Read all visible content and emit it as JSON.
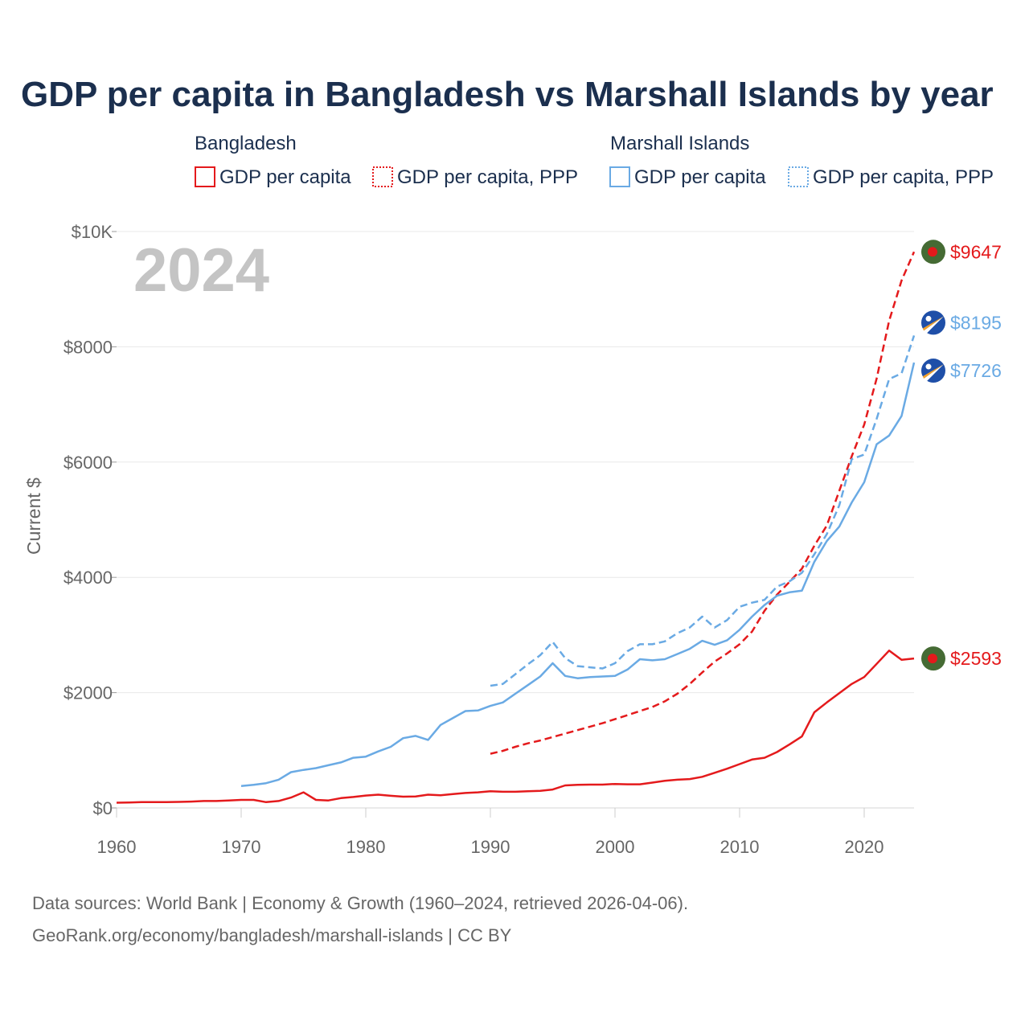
{
  "chart_data": {
    "type": "line",
    "title": "GDP per capita in Bangladesh vs Marshall Islands by year",
    "year_label": "2024",
    "ylabel": "Current $",
    "xlabel": "",
    "xlim": [
      1960,
      2024
    ],
    "ylim": [
      0,
      10000
    ],
    "x_ticks": [
      1960,
      1970,
      1980,
      1990,
      2000,
      2010,
      2020
    ],
    "x_tick_labels": [
      "1960",
      "1970",
      "1980",
      "1990",
      "2000",
      "2010",
      "2020"
    ],
    "y_ticks": [
      0,
      2000,
      4000,
      6000,
      8000,
      10000
    ],
    "y_tick_labels": [
      "$0",
      "$2000",
      "$4000",
      "$6000",
      "$8000",
      "$10K"
    ],
    "grid": true,
    "legend_groups": [
      {
        "name": "Bangladesh",
        "entries": [
          "GDP per capita",
          "GDP per capita, PPP"
        ]
      },
      {
        "name": "Marshall Islands",
        "entries": [
          "GDP per capita",
          "GDP per capita, PPP"
        ]
      }
    ],
    "colors": {
      "bangladesh": "#e41a1c",
      "marshall_islands": "#6aaae4",
      "flag_bd_green": "#456b34",
      "flag_bd_red": "#e41a1c",
      "flag_mh_blue": "#1f4fa8",
      "flag_mh_orange": "#f4a12a"
    },
    "series": [
      {
        "name": "Bangladesh GDP per capita",
        "country": "Bangladesh",
        "style": "solid",
        "color": "#e41a1c",
        "end_label": "$2593",
        "x": [
          1960,
          1961,
          1962,
          1963,
          1964,
          1965,
          1966,
          1967,
          1968,
          1969,
          1970,
          1971,
          1972,
          1973,
          1974,
          1975,
          1976,
          1977,
          1978,
          1979,
          1980,
          1981,
          1982,
          1983,
          1984,
          1985,
          1986,
          1987,
          1988,
          1989,
          1990,
          1991,
          1992,
          1993,
          1994,
          1995,
          1996,
          1997,
          1998,
          1999,
          2000,
          2001,
          2002,
          2003,
          2004,
          2005,
          2006,
          2007,
          2008,
          2009,
          2010,
          2011,
          2012,
          2013,
          2014,
          2015,
          2016,
          2017,
          2018,
          2019,
          2020,
          2021,
          2022,
          2023,
          2024
        ],
        "values": [
          90,
          95,
          100,
          100,
          100,
          105,
          110,
          120,
          120,
          130,
          140,
          140,
          100,
          120,
          180,
          270,
          140,
          130,
          170,
          190,
          215,
          230,
          210,
          195,
          200,
          230,
          220,
          240,
          260,
          270,
          290,
          280,
          280,
          290,
          295,
          320,
          390,
          400,
          405,
          405,
          415,
          410,
          410,
          440,
          470,
          490,
          500,
          540,
          610,
          680,
          760,
          840,
          870,
          970,
          1100,
          1240,
          1660,
          1830,
          1990,
          2150,
          2270,
          2500,
          2730,
          2570,
          2593
        ]
      },
      {
        "name": "Bangladesh GDP per capita, PPP",
        "country": "Bangladesh",
        "style": "dashed",
        "color": "#e41a1c",
        "end_label": "$9647",
        "x": [
          1990,
          1991,
          1992,
          1993,
          1994,
          1995,
          1996,
          1997,
          1998,
          1999,
          2000,
          2001,
          2002,
          2003,
          2004,
          2005,
          2006,
          2007,
          2008,
          2009,
          2010,
          2011,
          2012,
          2013,
          2014,
          2015,
          2016,
          2017,
          2018,
          2019,
          2020,
          2021,
          2022,
          2023,
          2024
        ],
        "values": [
          940,
          990,
          1060,
          1120,
          1170,
          1230,
          1290,
          1350,
          1410,
          1470,
          1540,
          1610,
          1680,
          1750,
          1850,
          1980,
          2150,
          2350,
          2540,
          2680,
          2840,
          3060,
          3420,
          3700,
          3920,
          4150,
          4550,
          4900,
          5500,
          6100,
          6650,
          7450,
          8450,
          9150,
          9647
        ]
      },
      {
        "name": "Marshall Islands GDP per capita",
        "country": "Marshall Islands",
        "style": "solid",
        "color": "#6aaae4",
        "end_label": "$7726",
        "x": [
          1970,
          1971,
          1972,
          1973,
          1974,
          1975,
          1976,
          1977,
          1978,
          1979,
          1980,
          1981,
          1982,
          1983,
          1984,
          1985,
          1986,
          1987,
          1988,
          1989,
          1990,
          1991,
          1992,
          1993,
          1994,
          1995,
          1996,
          1997,
          1998,
          1999,
          2000,
          2001,
          2002,
          2003,
          2004,
          2005,
          2006,
          2007,
          2008,
          2009,
          2010,
          2011,
          2012,
          2013,
          2014,
          2015,
          2016,
          2017,
          2018,
          2019,
          2020,
          2021,
          2022,
          2023,
          2024
        ],
        "values": [
          380,
          400,
          430,
          490,
          620,
          660,
          690,
          740,
          790,
          870,
          890,
          980,
          1060,
          1210,
          1250,
          1180,
          1440,
          1560,
          1680,
          1690,
          1770,
          1830,
          1980,
          2130,
          2280,
          2510,
          2290,
          2250,
          2270,
          2280,
          2290,
          2400,
          2580,
          2560,
          2580,
          2670,
          2760,
          2900,
          2830,
          2910,
          3090,
          3320,
          3520,
          3680,
          3740,
          3770,
          4270,
          4630,
          4880,
          5300,
          5650,
          6310,
          6460,
          6800,
          7726
        ]
      },
      {
        "name": "Marshall Islands GDP per capita, PPP",
        "country": "Marshall Islands",
        "style": "dashed",
        "color": "#6aaae4",
        "end_label": "$8195",
        "x": [
          1990,
          1991,
          1992,
          1993,
          1994,
          1995,
          1996,
          1997,
          1998,
          1999,
          2000,
          2001,
          2002,
          2003,
          2004,
          2005,
          2006,
          2007,
          2008,
          2009,
          2010,
          2011,
          2012,
          2013,
          2014,
          2015,
          2016,
          2017,
          2018,
          2019,
          2020,
          2021,
          2022,
          2023,
          2024
        ],
        "values": [
          2120,
          2150,
          2320,
          2490,
          2650,
          2880,
          2600,
          2460,
          2440,
          2420,
          2510,
          2720,
          2840,
          2840,
          2890,
          3030,
          3130,
          3320,
          3130,
          3260,
          3490,
          3560,
          3610,
          3840,
          3930,
          4080,
          4400,
          4750,
          5250,
          6050,
          6130,
          6750,
          7440,
          7540,
          8195
        ]
      }
    ]
  },
  "source": {
    "line1": "Data sources: World Bank | Economy & Growth (1960–2024, retrieved 2026-04-06).",
    "line2": "GeoRank.org/economy/bangladesh/marshall-islands | CC BY"
  }
}
